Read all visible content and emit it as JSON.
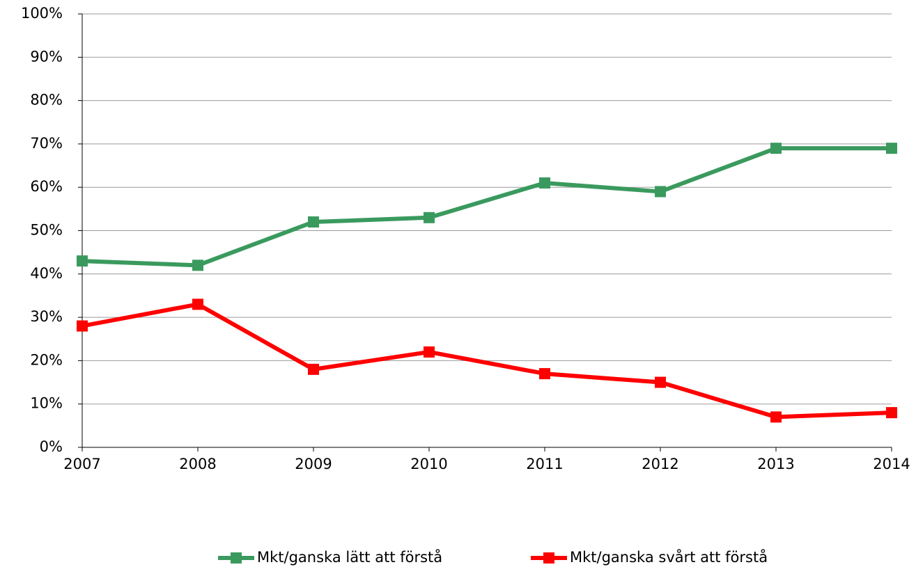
{
  "chart_data": {
    "type": "line",
    "x": [
      2007,
      2008,
      2009,
      2010,
      2011,
      2012,
      2013,
      2014
    ],
    "xlim": [
      2007,
      2014
    ],
    "xticks": [
      2007,
      2008,
      2009,
      2010,
      2011,
      2012,
      2013,
      2014
    ],
    "ylim": [
      0,
      100
    ],
    "yticks": [
      {
        "value": 0,
        "label": "0%"
      },
      {
        "value": 10,
        "label": "10%"
      },
      {
        "value": 20,
        "label": "20%"
      },
      {
        "value": 30,
        "label": "30%"
      },
      {
        "value": 40,
        "label": "40%"
      },
      {
        "value": 50,
        "label": "50%"
      },
      {
        "value": 60,
        "label": "60%"
      },
      {
        "value": 70,
        "label": "70%"
      },
      {
        "value": 80,
        "label": "80%"
      },
      {
        "value": 90,
        "label": "90%"
      },
      {
        "value": 100,
        "label": "100%"
      }
    ],
    "grid": true,
    "legend": "bottom",
    "series": [
      {
        "name": "Mkt/ganska lätt att förstå",
        "color": "#3a9a5e",
        "values": [
          43,
          42,
          52,
          53,
          61,
          59,
          69,
          69
        ]
      },
      {
        "name": "Mkt/ganska svårt att förstå",
        "color": "#ff0000",
        "values": [
          28,
          33,
          18,
          22,
          17,
          15,
          7,
          8
        ]
      }
    ]
  }
}
